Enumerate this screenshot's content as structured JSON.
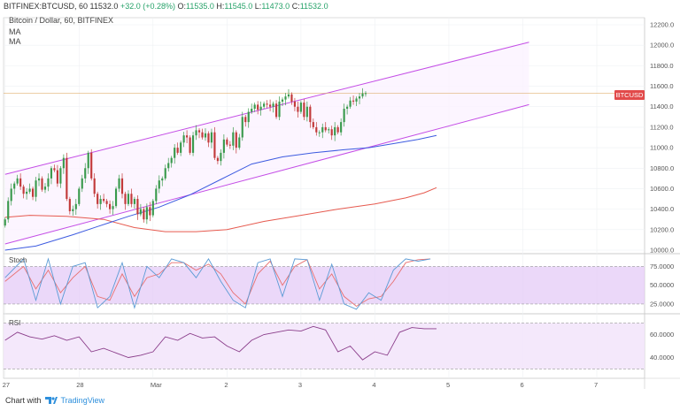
{
  "header": {
    "symbol": "BITFINEX:BTCUSD, 60",
    "change": "+32.0 (+0.28%)",
    "o_label": "O:",
    "o_value": "11535.0",
    "h_label": "H:",
    "h_value": "11545.0",
    "l_label": "L:",
    "l_value": "11473.0",
    "c_label": "C:",
    "c_value": "11532.0",
    "last": "11532.0",
    "subtitle": "Bitcoin / Dollar, 60, BITFINEX",
    "ma1": "MA",
    "ma2": "MA"
  },
  "price_badge": "BTCUSD",
  "indicators": {
    "stoch": "Stoch",
    "rsi": "RSI"
  },
  "footer": {
    "chart_with": "Chart with",
    "brand": "TradingView"
  },
  "colors": {
    "channel": "#c44ee6",
    "ma_fast": "#3d5be0",
    "ma_slow": "#e65a4f",
    "bull": "#3a9a4d",
    "bear": "#c23a3a",
    "k_line": "#5b9bd5",
    "d_line": "#e87070",
    "rsi_line": "#8a3d8a",
    "band": "#e4cbf7",
    "price_line": "#e0b070"
  },
  "chart_data": [
    {
      "type": "candlestick",
      "title": "Bitcoin / Dollar, 60, BITFINEX",
      "ylim": [
        10000,
        12200
      ],
      "y_ticks": [
        10000,
        10200,
        10400,
        10600,
        10800,
        11000,
        11200,
        11400,
        11600,
        11800,
        12000,
        12200
      ],
      "x_ticks": [
        "27",
        "28",
        "Mar",
        "2",
        "3",
        "4",
        "5",
        "6",
        "7"
      ],
      "x_tick_pos": [
        0,
        24,
        48,
        72,
        96,
        120,
        144,
        168,
        192
      ],
      "x_max": 208,
      "last_price": 11532,
      "close": [
        10300,
        10480,
        10600,
        10650,
        10700,
        10620,
        10550,
        10570,
        10600,
        10520,
        10680,
        10700,
        10590,
        10620,
        10700,
        10800,
        10780,
        10650,
        10800,
        10900,
        10500,
        10380,
        10400,
        10450,
        10600,
        10700,
        10800,
        10950,
        10700,
        10550,
        10450,
        10500,
        10480,
        10450,
        10400,
        10430,
        10600,
        10700,
        10550,
        10450,
        10550,
        10450,
        10500,
        10350,
        10400,
        10300,
        10420,
        10340,
        10480,
        10600,
        10680,
        10700,
        10800,
        10850,
        10900,
        11000,
        10950,
        11050,
        11120,
        11100,
        10950,
        11120,
        11170,
        11150,
        11100,
        11140,
        11050,
        11150,
        10900,
        10870,
        10950,
        11080,
        11030,
        11020,
        11150,
        11000,
        11100,
        11300,
        11250,
        11350,
        11380,
        11420,
        11370,
        11400,
        11430,
        11420,
        11400,
        11430,
        11300,
        11450,
        11470,
        11500,
        11520,
        11450,
        11400,
        11350,
        11440,
        11300,
        11400,
        11250,
        11200,
        11150,
        11150,
        11200,
        11170,
        11180,
        11120,
        11200,
        11150,
        11250,
        11380,
        11400,
        11460,
        11450,
        11480,
        11500,
        11530,
        11532
      ],
      "ma_fast": [
        [
          0,
          10000
        ],
        [
          10,
          10040
        ],
        [
          22,
          10150
        ],
        [
          30,
          10230
        ],
        [
          40,
          10330
        ],
        [
          50,
          10420
        ],
        [
          60,
          10540
        ],
        [
          70,
          10690
        ],
        [
          80,
          10840
        ],
        [
          90,
          10910
        ],
        [
          100,
          10950
        ],
        [
          110,
          10980
        ],
        [
          118,
          11000
        ],
        [
          126,
          11040
        ],
        [
          134,
          11080
        ],
        [
          140,
          11120
        ]
      ],
      "ma_slow": [
        [
          0,
          10320
        ],
        [
          8,
          10340
        ],
        [
          20,
          10330
        ],
        [
          32,
          10300
        ],
        [
          42,
          10220
        ],
        [
          52,
          10180
        ],
        [
          62,
          10180
        ],
        [
          72,
          10200
        ],
        [
          84,
          10280
        ],
        [
          96,
          10340
        ],
        [
          108,
          10400
        ],
        [
          120,
          10450
        ],
        [
          130,
          10510
        ],
        [
          136,
          10560
        ],
        [
          140,
          10610
        ]
      ],
      "channel_upper": [
        [
          0,
          10740
        ],
        [
          170,
          12030
        ]
      ],
      "channel_lower": [
        [
          0,
          10060
        ],
        [
          170,
          11420
        ]
      ]
    },
    {
      "type": "line",
      "title": "Stoch",
      "ylim": [
        12,
        92
      ],
      "y_ticks": [
        25,
        50,
        75
      ],
      "y_tick_labels": [
        "25.0000",
        "50.0000",
        "75.0000"
      ],
      "k": [
        [
          0,
          60
        ],
        [
          6,
          85
        ],
        [
          10,
          30
        ],
        [
          14,
          85
        ],
        [
          18,
          25
        ],
        [
          22,
          75
        ],
        [
          26,
          80
        ],
        [
          30,
          20
        ],
        [
          34,
          35
        ],
        [
          38,
          80
        ],
        [
          42,
          20
        ],
        [
          46,
          75
        ],
        [
          50,
          60
        ],
        [
          54,
          85
        ],
        [
          58,
          80
        ],
        [
          62,
          60
        ],
        [
          66,
          85
        ],
        [
          70,
          55
        ],
        [
          74,
          30
        ],
        [
          78,
          20
        ],
        [
          82,
          80
        ],
        [
          86,
          85
        ],
        [
          90,
          35
        ],
        [
          94,
          85
        ],
        [
          98,
          84
        ],
        [
          102,
          30
        ],
        [
          106,
          78
        ],
        [
          110,
          25
        ],
        [
          114,
          18
        ],
        [
          118,
          40
        ],
        [
          122,
          30
        ],
        [
          126,
          70
        ],
        [
          130,
          85
        ],
        [
          134,
          82
        ],
        [
          138,
          85
        ]
      ],
      "d": [
        [
          0,
          55
        ],
        [
          6,
          75
        ],
        [
          10,
          45
        ],
        [
          14,
          70
        ],
        [
          18,
          40
        ],
        [
          22,
          60
        ],
        [
          26,
          75
        ],
        [
          30,
          35
        ],
        [
          34,
          30
        ],
        [
          38,
          65
        ],
        [
          42,
          35
        ],
        [
          46,
          60
        ],
        [
          50,
          65
        ],
        [
          54,
          80
        ],
        [
          58,
          80
        ],
        [
          62,
          70
        ],
        [
          66,
          78
        ],
        [
          70,
          65
        ],
        [
          74,
          40
        ],
        [
          78,
          25
        ],
        [
          82,
          65
        ],
        [
          86,
          82
        ],
        [
          90,
          50
        ],
        [
          94,
          75
        ],
        [
          98,
          84
        ],
        [
          102,
          45
        ],
        [
          106,
          65
        ],
        [
          110,
          35
        ],
        [
          114,
          22
        ],
        [
          118,
          32
        ],
        [
          122,
          35
        ],
        [
          126,
          55
        ],
        [
          130,
          80
        ],
        [
          134,
          84
        ],
        [
          138,
          85
        ]
      ]
    },
    {
      "type": "line",
      "title": "RSI",
      "ylim": [
        22,
        78
      ],
      "y_ticks": [
        40,
        60
      ],
      "y_tick_labels": [
        "40.0000",
        "60.0000"
      ],
      "band": [
        30,
        70
      ],
      "values": [
        [
          0,
          55
        ],
        [
          4,
          62
        ],
        [
          8,
          58
        ],
        [
          12,
          56
        ],
        [
          16,
          59
        ],
        [
          20,
          55
        ],
        [
          24,
          58
        ],
        [
          28,
          45
        ],
        [
          32,
          48
        ],
        [
          36,
          44
        ],
        [
          40,
          40
        ],
        [
          44,
          42
        ],
        [
          48,
          45
        ],
        [
          52,
          58
        ],
        [
          56,
          55
        ],
        [
          60,
          61
        ],
        [
          64,
          57
        ],
        [
          68,
          58
        ],
        [
          72,
          50
        ],
        [
          76,
          45
        ],
        [
          80,
          55
        ],
        [
          84,
          60
        ],
        [
          88,
          62
        ],
        [
          92,
          64
        ],
        [
          96,
          63
        ],
        [
          100,
          67
        ],
        [
          104,
          64
        ],
        [
          108,
          45
        ],
        [
          112,
          50
        ],
        [
          116,
          38
        ],
        [
          120,
          45
        ],
        [
          124,
          42
        ],
        [
          128,
          62
        ],
        [
          132,
          66
        ],
        [
          136,
          65
        ],
        [
          140,
          65
        ]
      ]
    }
  ]
}
